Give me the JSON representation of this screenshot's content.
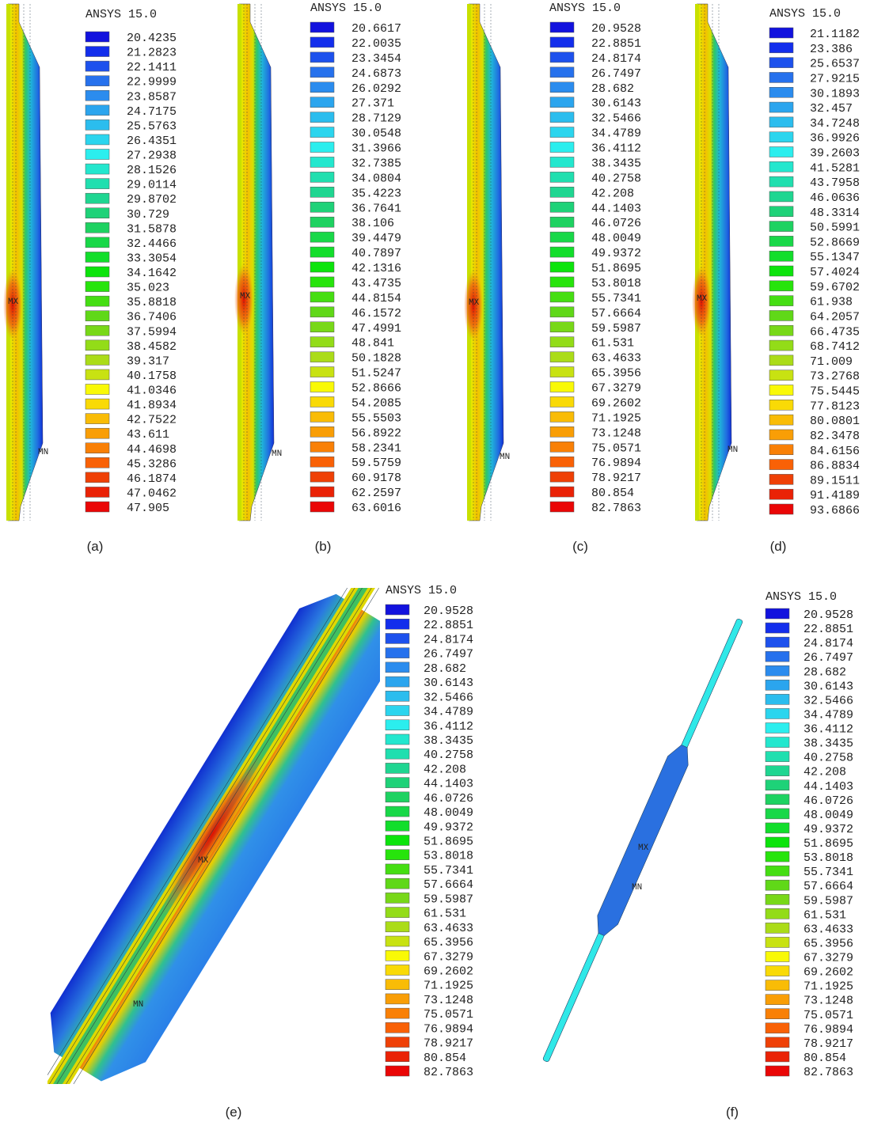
{
  "swatch_colors": [
    "hsl(240,85%,47%)",
    "hsl(232.5,85%,50%)",
    "hsl(225,85%,52%)",
    "hsl(217.5,85%,54%)",
    "hsl(210,85%,55%)",
    "hsl(202.5,85%,55%)",
    "hsl(195,85%,55%)",
    "hsl(187.5,85%,55%)",
    "hsl(180,85%,55%)",
    "hsl(172.5,80%,52%)",
    "hsl(165,75%,50%)",
    "hsl(157.5,75%,48%)",
    "hsl(150,75%,47%)",
    "hsl(142.5,75%,47%)",
    "hsl(135,80%,47%)",
    "hsl(127.5,85%,47%)",
    "hsl(120,90%,47%)",
    "hsl(112.5,90%,47%)",
    "hsl(105,85%,47%)",
    "hsl(97.5,80%,47%)",
    "hsl(90,80%,47%)",
    "hsl(82.5,80%,48%)",
    "hsl(75,80%,48%)",
    "hsl(67.5,85%,48%)",
    "hsl(60,95%,50%)",
    "hsl(52.5,95%,50%)",
    "hsl(45,95%,50%)",
    "hsl(37.5,95%,50%)",
    "hsl(30,95%,50%)",
    "hsl(22.5,95%,50%)",
    "hsl(15,95%,48%)",
    "hsl(7.5,95%,47%)",
    "hsl(0,95%,47%)"
  ],
  "panels": [
    {
      "caption": "(a)",
      "header": "ANSYS 15.0",
      "max_label": "MX",
      "min_label": "MN",
      "legend": [
        "20.4235",
        "21.2823",
        "22.1411",
        "22.9999",
        "23.8587",
        "24.7175",
        "25.5763",
        "26.4351",
        "27.2938",
        "28.1526",
        "29.0114",
        "29.8702",
        "30.729",
        "31.5878",
        "32.4466",
        "33.3054",
        "34.1642",
        "35.023",
        "35.8818",
        "36.7406",
        "37.5994",
        "38.4582",
        "39.317",
        "40.1758",
        "41.0346",
        "41.8934",
        "42.7522",
        "43.611",
        "44.4698",
        "45.3286",
        "46.1874",
        "47.0462",
        "47.905"
      ]
    },
    {
      "caption": "(b)",
      "header": "ANSYS 15.0",
      "max_label": "MX",
      "min_label": "MN",
      "legend": [
        "20.6617",
        "22.0035",
        "23.3454",
        "24.6873",
        "26.0292",
        "27.371",
        "28.7129",
        "30.0548",
        "31.3966",
        "32.7385",
        "34.0804",
        "35.4223",
        "36.7641",
        "38.106",
        "39.4479",
        "40.7897",
        "42.1316",
        "43.4735",
        "44.8154",
        "46.1572",
        "47.4991",
        "48.841",
        "50.1828",
        "51.5247",
        "52.8666",
        "54.2085",
        "55.5503",
        "56.8922",
        "58.2341",
        "59.5759",
        "60.9178",
        "62.2597",
        "63.6016"
      ]
    },
    {
      "caption": "(c)",
      "header": "ANSYS 15.0",
      "max_label": "MX",
      "min_label": "MN",
      "legend": [
        "20.9528",
        "22.8851",
        "24.8174",
        "26.7497",
        "28.682",
        "30.6143",
        "32.5466",
        "34.4789",
        "36.4112",
        "38.3435",
        "40.2758",
        "42.208",
        "44.1403",
        "46.0726",
        "48.0049",
        "49.9372",
        "51.8695",
        "53.8018",
        "55.7341",
        "57.6664",
        "59.5987",
        "61.531",
        "63.4633",
        "65.3956",
        "67.3279",
        "69.2602",
        "71.1925",
        "73.1248",
        "75.0571",
        "76.9894",
        "78.9217",
        "80.854",
        "82.7863"
      ]
    },
    {
      "caption": "(d)",
      "header": "ANSYS 15.0",
      "max_label": "MX",
      "min_label": "MN",
      "legend": [
        "21.1182",
        "23.386",
        "25.6537",
        "27.9215",
        "30.1893",
        "32.457",
        "34.7248",
        "36.9926",
        "39.2603",
        "41.5281",
        "43.7958",
        "46.0636",
        "48.3314",
        "50.5991",
        "52.8669",
        "55.1347",
        "57.4024",
        "59.6702",
        "61.938",
        "64.2057",
        "66.4735",
        "68.7412",
        "71.009",
        "73.2768",
        "75.5445",
        "77.8123",
        "80.0801",
        "82.3478",
        "84.6156",
        "86.8834",
        "89.1511",
        "91.4189",
        "93.6866"
      ]
    },
    {
      "caption": "(e)",
      "header": "ANSYS 15.0",
      "max_label": "MX",
      "min_label": "MN",
      "legend": [
        "20.9528",
        "22.8851",
        "24.8174",
        "26.7497",
        "28.682",
        "30.6143",
        "32.5466",
        "34.4789",
        "36.4112",
        "38.3435",
        "40.2758",
        "42.208",
        "44.1403",
        "46.0726",
        "48.0049",
        "49.9372",
        "51.8695",
        "53.8018",
        "55.7341",
        "57.6664",
        "59.5987",
        "61.531",
        "63.4633",
        "65.3956",
        "67.3279",
        "69.2602",
        "71.1925",
        "73.1248",
        "75.0571",
        "76.9894",
        "78.9217",
        "80.854",
        "82.7863"
      ]
    },
    {
      "caption": "(f)",
      "header": "ANSYS 15.0",
      "max_label": "MX",
      "min_label": "MN",
      "legend": [
        "20.9528",
        "22.8851",
        "24.8174",
        "26.7497",
        "28.682",
        "30.6143",
        "32.5466",
        "34.4789",
        "36.4112",
        "38.3435",
        "40.2758",
        "42.208",
        "44.1403",
        "46.0726",
        "48.0049",
        "49.9372",
        "51.8695",
        "53.8018",
        "55.7341",
        "57.6664",
        "59.5987",
        "61.531",
        "63.4633",
        "65.3956",
        "67.3279",
        "69.2602",
        "71.1925",
        "73.1248",
        "75.0571",
        "76.9894",
        "78.9217",
        "80.854",
        "82.7863"
      ]
    }
  ]
}
